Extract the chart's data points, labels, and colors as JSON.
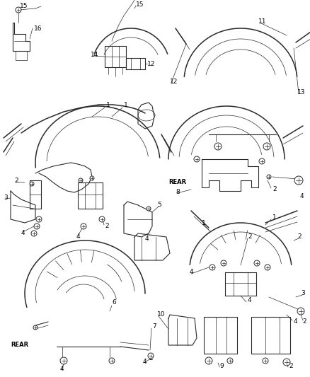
{
  "bg_color": "#ffffff",
  "line_color": "#2a2a2a",
  "text_color": "#000000",
  "fig_width": 4.39,
  "fig_height": 5.33,
  "dpi": 100
}
